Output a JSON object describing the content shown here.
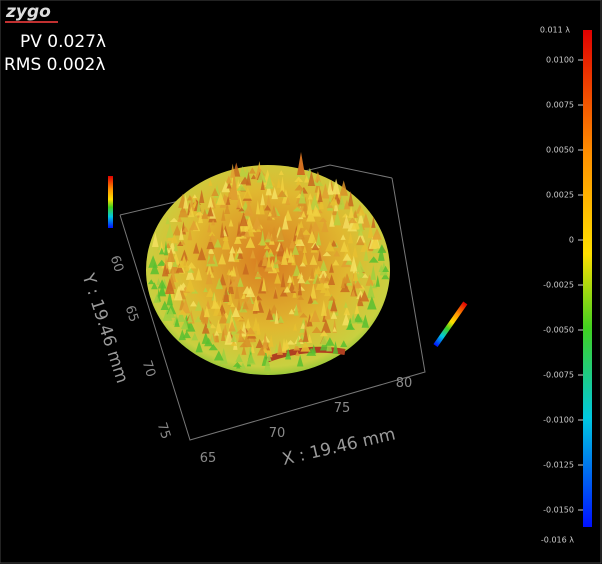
{
  "logo": "zygo",
  "stats": {
    "pv": "PV 0.027λ",
    "rms": "RMS 0.002λ"
  },
  "colorbar": {
    "top": "0.011 λ",
    "bottom": "-0.016 λ",
    "ticks": [
      "0.0100",
      "0.0075",
      "0.0050",
      "0.0025",
      "0",
      "-0.0025",
      "-0.0050",
      "-0.0075",
      "-0.0100",
      "-0.0125",
      "-0.0150"
    ]
  },
  "x_axis": {
    "label": "X : 19.46 mm",
    "ticks": [
      "65",
      "70",
      "75",
      "80"
    ]
  },
  "y_axis": {
    "label": "Y : 19.46 mm",
    "ticks": [
      "60",
      "65",
      "70",
      "75"
    ]
  }
}
